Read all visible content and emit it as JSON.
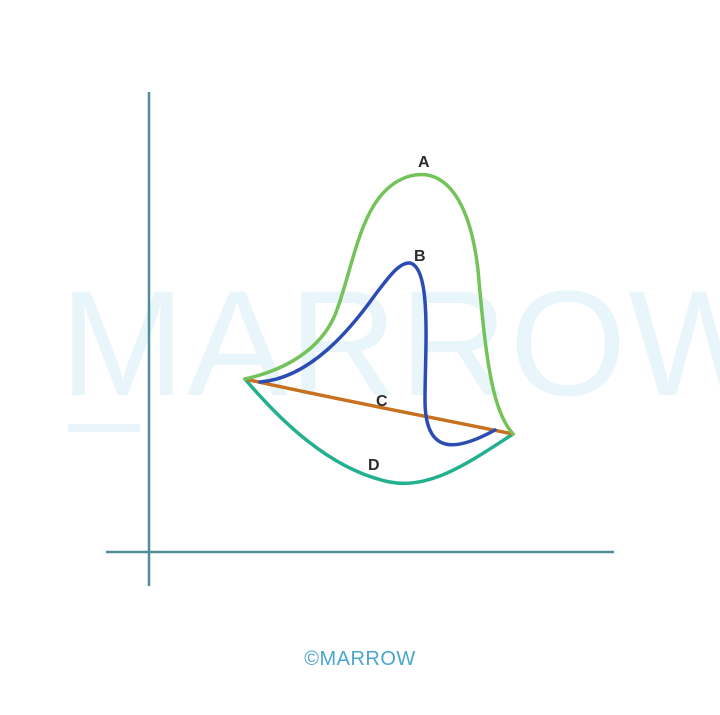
{
  "diagram": {
    "curves": [
      {
        "id": "A",
        "label": "A",
        "color": "#73c35a"
      },
      {
        "id": "B",
        "label": "B",
        "color": "#2b4db3"
      },
      {
        "id": "C",
        "label": "C",
        "color": "#c7711f"
      },
      {
        "id": "D",
        "label": "D",
        "color": "#23b08f"
      }
    ],
    "axis_color": "#4f8f9a"
  },
  "watermark": {
    "text": "MARROW",
    "color": "#e8f5fb"
  },
  "footer": {
    "copyright_text": "©MARROW",
    "color": "#4aa6cc"
  }
}
